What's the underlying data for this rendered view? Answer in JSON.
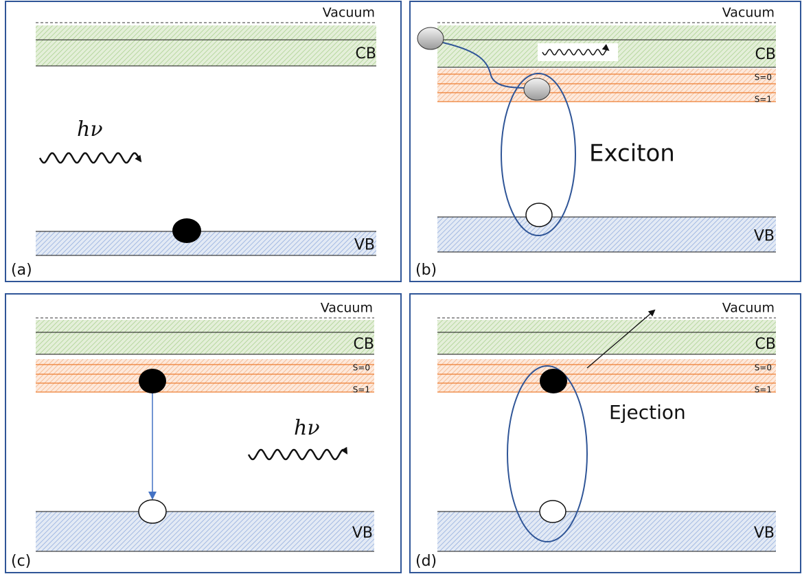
{
  "panels": [
    {
      "label": "(a)",
      "vacuum": "Vacuum",
      "cb": "CB",
      "vb": "VB",
      "photon": "hν"
    },
    {
      "label": "(b)",
      "vacuum": "Vacuum",
      "cb": "CB",
      "vb": "VB",
      "s0": "S=0",
      "s1": "S=1",
      "annotation": "Exciton"
    },
    {
      "label": "(c)",
      "vacuum": "Vacuum",
      "cb": "CB",
      "vb": "VB",
      "s0": "S=0",
      "s1": "S=1",
      "photon": "hν"
    },
    {
      "label": "(d)",
      "vacuum": "Vacuum",
      "cb": "CB",
      "vb": "VB",
      "s0": "S=0",
      "s1": "S=1",
      "annotation": "Ejection"
    }
  ]
}
